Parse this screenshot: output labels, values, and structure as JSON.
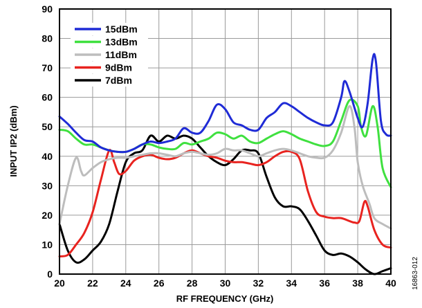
{
  "chart_data": {
    "type": "line",
    "xlabel": "RF FREQUENCY (GHz)",
    "ylabel": "INPUT IP2 (dBm)",
    "xlim": [
      20,
      40
    ],
    "ylim": [
      0,
      90
    ],
    "x_ticks": [
      20,
      22,
      24,
      26,
      28,
      30,
      32,
      34,
      36,
      38,
      40
    ],
    "y_ticks": [
      0,
      10,
      20,
      30,
      40,
      50,
      60,
      70,
      80,
      90
    ],
    "grid": true,
    "legend_position": "top-left",
    "figure_id": "16863-012",
    "series": [
      {
        "name": "15dBm",
        "color": "#1f2bd6",
        "points": [
          [
            20,
            53.5
          ],
          [
            20.5,
            51
          ],
          [
            21,
            48
          ],
          [
            21.5,
            45.5
          ],
          [
            22,
            45
          ],
          [
            22.5,
            43
          ],
          [
            23,
            42
          ],
          [
            23.5,
            41.5
          ],
          [
            24,
            41.5
          ],
          [
            24.5,
            42.5
          ],
          [
            25,
            44
          ],
          [
            25.5,
            45
          ],
          [
            26,
            44.5
          ],
          [
            26.5,
            45
          ],
          [
            27,
            46
          ],
          [
            27.5,
            49.5
          ],
          [
            28,
            48
          ],
          [
            28.5,
            48
          ],
          [
            29,
            52
          ],
          [
            29.5,
            57.5
          ],
          [
            30,
            56
          ],
          [
            30.5,
            51.5
          ],
          [
            31,
            50.5
          ],
          [
            31.5,
            49
          ],
          [
            32,
            49
          ],
          [
            32.5,
            53
          ],
          [
            33,
            55
          ],
          [
            33.5,
            58
          ],
          [
            34,
            57
          ],
          [
            34.5,
            55
          ],
          [
            35,
            53
          ],
          [
            35.5,
            51.5
          ],
          [
            36,
            50.5
          ],
          [
            36.5,
            51.5
          ],
          [
            37,
            60
          ],
          [
            37.2,
            65.5
          ],
          [
            37.5,
            62
          ],
          [
            38,
            53
          ],
          [
            38.3,
            50
          ],
          [
            38.6,
            58
          ],
          [
            38.9,
            73
          ],
          [
            39.1,
            72
          ],
          [
            39.4,
            52
          ],
          [
            39.7,
            47.5
          ],
          [
            40,
            47
          ]
        ]
      },
      {
        "name": "13dBm",
        "color": "#3fe03f",
        "points": [
          [
            20,
            49
          ],
          [
            20.5,
            48.5
          ],
          [
            21,
            46
          ],
          [
            21.5,
            44
          ],
          [
            22,
            44
          ],
          [
            22.5,
            43
          ],
          [
            23,
            42
          ],
          [
            23.5,
            41.5
          ],
          [
            24,
            41.5
          ],
          [
            24.5,
            42.5
          ],
          [
            25,
            44
          ],
          [
            25.5,
            44
          ],
          [
            26,
            43
          ],
          [
            26.5,
            42.5
          ],
          [
            27,
            42.5
          ],
          [
            27.5,
            44.5
          ],
          [
            28,
            44
          ],
          [
            28.5,
            45
          ],
          [
            29,
            46
          ],
          [
            29.5,
            48
          ],
          [
            30,
            47.5
          ],
          [
            30.5,
            46
          ],
          [
            31,
            47
          ],
          [
            31.5,
            45
          ],
          [
            32,
            44.5
          ],
          [
            32.5,
            46
          ],
          [
            33,
            47.5
          ],
          [
            33.5,
            48.5
          ],
          [
            34,
            47.5
          ],
          [
            34.5,
            46
          ],
          [
            35,
            45
          ],
          [
            35.5,
            44
          ],
          [
            36,
            43.5
          ],
          [
            36.5,
            45
          ],
          [
            37,
            52
          ],
          [
            37.5,
            59
          ],
          [
            38,
            57
          ],
          [
            38.2,
            50
          ],
          [
            38.5,
            47
          ],
          [
            38.9,
            57
          ],
          [
            39.2,
            50
          ],
          [
            39.5,
            36
          ],
          [
            40,
            29.5
          ]
        ]
      },
      {
        "name": "11dBm",
        "color": "#bdbdbd",
        "points": [
          [
            20,
            17
          ],
          [
            20.5,
            30
          ],
          [
            21,
            39.5
          ],
          [
            21.3,
            35
          ],
          [
            21.5,
            33.5
          ],
          [
            22,
            36
          ],
          [
            22.5,
            38
          ],
          [
            23,
            39
          ],
          [
            23.5,
            39.5
          ],
          [
            24,
            39.5
          ],
          [
            24.5,
            40
          ],
          [
            25,
            40.5
          ],
          [
            25.5,
            41
          ],
          [
            26,
            41
          ],
          [
            26.5,
            40.5
          ],
          [
            27,
            40
          ],
          [
            27.5,
            41
          ],
          [
            28,
            41.5
          ],
          [
            28.5,
            41
          ],
          [
            29,
            40.5
          ],
          [
            29.5,
            41
          ],
          [
            30,
            42.5
          ],
          [
            30.5,
            42
          ],
          [
            31,
            42
          ],
          [
            31.5,
            41
          ],
          [
            32,
            40
          ],
          [
            32.5,
            41
          ],
          [
            33,
            42
          ],
          [
            33.5,
            42.5
          ],
          [
            34,
            42
          ],
          [
            34.5,
            41
          ],
          [
            35,
            40
          ],
          [
            35.5,
            39.5
          ],
          [
            36,
            39.5
          ],
          [
            36.5,
            42
          ],
          [
            37,
            48
          ],
          [
            37.5,
            57
          ],
          [
            37.8,
            50
          ],
          [
            38,
            38
          ],
          [
            38.3,
            30
          ],
          [
            38.7,
            24
          ],
          [
            39,
            19
          ],
          [
            39.5,
            17
          ],
          [
            40,
            15.5
          ]
        ]
      },
      {
        "name": "9dBm",
        "color": "#e8231f",
        "points": [
          [
            20,
            6
          ],
          [
            20.5,
            6.5
          ],
          [
            21,
            10
          ],
          [
            21.5,
            14
          ],
          [
            22,
            21
          ],
          [
            22.5,
            32
          ],
          [
            23,
            42
          ],
          [
            23.3,
            38
          ],
          [
            23.6,
            34
          ],
          [
            24,
            35
          ],
          [
            24.5,
            38.5
          ],
          [
            25,
            40
          ],
          [
            25.5,
            40.5
          ],
          [
            26,
            39.5
          ],
          [
            26.5,
            39
          ],
          [
            27,
            39.5
          ],
          [
            27.5,
            41
          ],
          [
            28,
            42
          ],
          [
            28.5,
            41
          ],
          [
            29,
            40
          ],
          [
            29.5,
            39.5
          ],
          [
            30,
            38.5
          ],
          [
            30.5,
            38
          ],
          [
            31,
            38
          ],
          [
            31.5,
            37.5
          ],
          [
            32,
            37
          ],
          [
            32.5,
            38
          ],
          [
            33,
            40
          ],
          [
            33.5,
            41.5
          ],
          [
            34,
            41.5
          ],
          [
            34.5,
            39
          ],
          [
            35,
            28
          ],
          [
            35.5,
            21
          ],
          [
            36,
            19.5
          ],
          [
            36.5,
            19
          ],
          [
            37,
            19
          ],
          [
            37.5,
            18
          ],
          [
            37.8,
            17.5
          ],
          [
            38.1,
            18
          ],
          [
            38.4,
            24.5
          ],
          [
            38.6,
            23
          ],
          [
            39,
            15
          ],
          [
            39.5,
            10
          ],
          [
            40,
            9
          ]
        ]
      },
      {
        "name": "7dBm",
        "color": "#000000",
        "points": [
          [
            20,
            17
          ],
          [
            20.5,
            8
          ],
          [
            21,
            4
          ],
          [
            21.5,
            5
          ],
          [
            22,
            8
          ],
          [
            22.5,
            11
          ],
          [
            23,
            17
          ],
          [
            23.5,
            28
          ],
          [
            24,
            38
          ],
          [
            24.5,
            41
          ],
          [
            25,
            42
          ],
          [
            25.5,
            47
          ],
          [
            26,
            45
          ],
          [
            26.5,
            47
          ],
          [
            27,
            46
          ],
          [
            27.5,
            47
          ],
          [
            28,
            46
          ],
          [
            28.5,
            43
          ],
          [
            29,
            40
          ],
          [
            29.5,
            38
          ],
          [
            30,
            37
          ],
          [
            30.5,
            39
          ],
          [
            31,
            42
          ],
          [
            31.5,
            42
          ],
          [
            32,
            41
          ],
          [
            32.5,
            33
          ],
          [
            33,
            26
          ],
          [
            33.5,
            23
          ],
          [
            34,
            23
          ],
          [
            34.5,
            22
          ],
          [
            35,
            18
          ],
          [
            35.5,
            13
          ],
          [
            36,
            8
          ],
          [
            36.5,
            6.5
          ],
          [
            37,
            7
          ],
          [
            37.5,
            6
          ],
          [
            38,
            4
          ],
          [
            38.5,
            1.5
          ],
          [
            39,
            0
          ],
          [
            39.5,
            1
          ],
          [
            40,
            2
          ]
        ]
      }
    ]
  }
}
